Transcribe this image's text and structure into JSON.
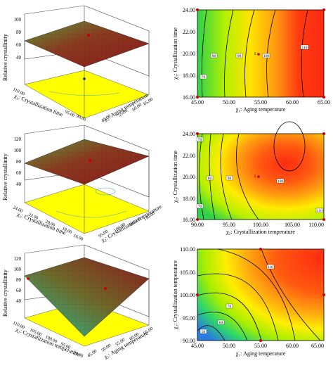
{
  "chart_data": [
    {
      "type": "surface3d",
      "zlabel": "Relative crystallinity",
      "xlabel": "χ₁: Aging temperature",
      "ylabel": "χ₃: Crystallization time",
      "x_ticks": [
        "45.00",
        "50.00",
        "55.00",
        "60.00",
        "65.00"
      ],
      "y_ticks": [
        "16.00",
        "19.00",
        "22.00",
        "24.00"
      ],
      "y_ticks_shown": [
        "90.00",
        "95.00",
        "100.00",
        "105.00",
        "110.00"
      ],
      "z_ticks": [
        "100",
        "80",
        "60",
        "40"
      ]
    },
    {
      "type": "contour",
      "xlabel": "χ₁: Aging temperature",
      "ylabel": "χ₃: Crystallization time",
      "x_ticks": [
        "45.00",
        "50.00",
        "55.00",
        "60.00",
        "65.00"
      ],
      "y_ticks": [
        "16.00",
        "18.00",
        "20.00",
        "22.00",
        "24.00"
      ],
      "xlim": [
        45,
        65
      ],
      "ylim": [
        16,
        24
      ],
      "contour_labels": [
        "70",
        "80",
        "90",
        "100",
        "110"
      ],
      "center_label": "5"
    },
    {
      "type": "surface3d",
      "zlabel": "Relative crystallinity",
      "xlabel": "χ₂: Crystallization temperature",
      "ylabel": "χ₃: Crystallization time",
      "x_ticks": [
        "90.00",
        "95.00",
        "100.00",
        "105.00",
        "110.00"
      ],
      "y_ticks": [
        "16.00",
        "18.00",
        "20.00",
        "22.00",
        "24.00"
      ],
      "z_ticks": [
        "120",
        "100",
        "80",
        "60",
        "40"
      ]
    },
    {
      "type": "contour",
      "xlabel": "χ₂: Crystallization temperature",
      "ylabel": "χ₃: Crystallization time",
      "x_ticks": [
        "90.00",
        "95.00",
        "100.00",
        "105.00",
        "110.00"
      ],
      "y_ticks": [
        "16.00",
        "18.00",
        "20.00",
        "22.00",
        "24.00"
      ],
      "xlim": [
        90,
        110
      ],
      "ylim": [
        16,
        24
      ],
      "contour_labels": [
        "70",
        "80",
        "90",
        "100",
        "110"
      ],
      "center_label": "5"
    },
    {
      "type": "surface3d",
      "zlabel": "Relative crystallinity",
      "xlabel": "χ₁: Aging temperature",
      "ylabel": "χ₂: Crystallization temperature",
      "x_ticks": [
        "45.00",
        "50.00",
        "55.00",
        "60.00",
        "65.00"
      ],
      "y_ticks": [
        "90.00",
        "95.00",
        "100.00",
        "105.00",
        "110.00"
      ],
      "z_ticks": [
        "120",
        "100",
        "80",
        "60",
        "40"
      ]
    },
    {
      "type": "contour",
      "xlabel": "χ₁: Aging temperature",
      "ylabel": "χ₂: Crystallization temperature",
      "x_ticks": [
        "45.00",
        "50.00",
        "55.00",
        "60.00",
        "65.00"
      ],
      "y_ticks": [
        "90.00",
        "95.00",
        "100.00",
        "105.00",
        "110.00"
      ],
      "xlim": [
        45,
        65
      ],
      "ylim": [
        90,
        110
      ],
      "contour_labels": [
        "50",
        "60",
        "70",
        "80",
        "90",
        "110"
      ],
      "center_label": ""
    }
  ],
  "colors": {
    "contour_low": "#2c8cd8",
    "contour_mid": "#9fe000",
    "contour_yellow": "#fff200",
    "contour_high": "#e8201a",
    "surface_red": "#8a1c1c",
    "surface_green": "#4f8a36",
    "base_yellow": "#ffff00"
  }
}
